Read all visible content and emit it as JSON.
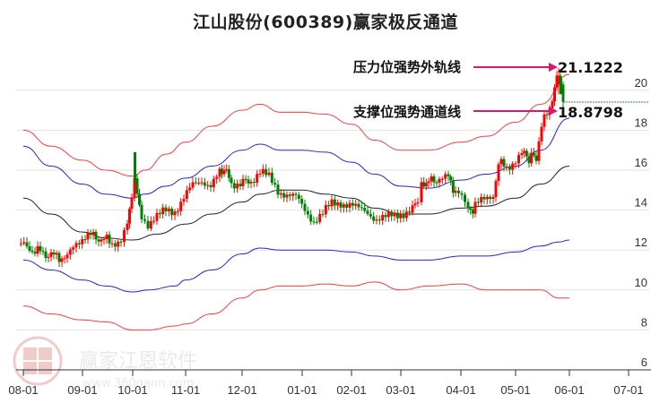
{
  "title": "江山股份(600389)赢家极反通道",
  "watermark": {
    "brand": "赢家江恩软件",
    "url": "www.360gann.com",
    "seal": [
      "江",
      "赢",
      "恩",
      "家"
    ]
  },
  "colors": {
    "up": "#ff0000",
    "down": "#008000",
    "outer_band": "#ff3b3b",
    "inner_band": "#2323e6",
    "mid_line": "#222222",
    "arrow": "#e0156e",
    "grid": "#e2e2e2",
    "dashed_level": "#2e8b2e"
  },
  "chart_data": {
    "type": "candlestick_with_channels",
    "title": "江山股份(600389)赢家极反通道",
    "xlabel": "",
    "ylabel": "",
    "ylim": [
      6,
      21.5
    ],
    "y_ticks": [
      6,
      8,
      10,
      12,
      14,
      16,
      18,
      20
    ],
    "x_ticks": [
      "08-01",
      "09-01",
      "10-01",
      "11-01",
      "12-01",
      "01-01",
      "02-01",
      "03-01",
      "04-01",
      "05-01",
      "06-01",
      "07-01"
    ],
    "grid": true,
    "y_axis_position": "right",
    "annotations": [
      {
        "label": "压力位强势外轨线",
        "value": "21.1222"
      },
      {
        "label": "支撑位强势通道线",
        "value": "18.8798"
      }
    ],
    "dashed_level": 19.35,
    "series": [
      {
        "name": "outer_upper",
        "color": "#ff3b3b",
        "x": [
          "08-01",
          "08-15",
          "09-01",
          "09-15",
          "10-01",
          "10-08",
          "10-20",
          "11-01",
          "11-15",
          "12-01",
          "12-10",
          "12-20",
          "01-01",
          "01-15",
          "02-01",
          "02-15",
          "03-01",
          "03-15",
          "04-01",
          "04-15",
          "05-01",
          "05-15",
          "06-01"
        ],
        "values": [
          18.0,
          17.2,
          16.5,
          16.0,
          15.7,
          16.0,
          16.8,
          17.4,
          18.2,
          19.0,
          19.3,
          18.9,
          18.9,
          18.8,
          18.3,
          17.5,
          17.0,
          17.0,
          17.4,
          17.7,
          18.4,
          19.3,
          20.8
        ]
      },
      {
        "name": "inner_upper",
        "color": "#2323e6",
        "x": [
          "08-01",
          "08-15",
          "09-01",
          "09-15",
          "10-01",
          "10-08",
          "10-20",
          "11-01",
          "11-15",
          "12-01",
          "12-10",
          "12-20",
          "01-01",
          "01-15",
          "02-01",
          "02-15",
          "03-01",
          "03-15",
          "04-01",
          "04-15",
          "05-01",
          "05-15",
          "06-01"
        ],
        "values": [
          17.2,
          16.2,
          15.3,
          14.8,
          14.6,
          14.8,
          15.2,
          15.6,
          16.2,
          17.0,
          17.3,
          17.0,
          17.0,
          16.9,
          16.4,
          15.8,
          15.2,
          15.1,
          15.5,
          15.8,
          16.2,
          17.0,
          18.6
        ]
      },
      {
        "name": "middle",
        "color": "#222222",
        "x": [
          "08-01",
          "08-15",
          "09-01",
          "09-15",
          "10-01",
          "10-15",
          "11-01",
          "11-15",
          "12-01",
          "12-10",
          "12-20",
          "01-01",
          "01-15",
          "02-01",
          "02-15",
          "03-01",
          "03-15",
          "04-01",
          "04-15",
          "05-01",
          "05-15",
          "06-01"
        ],
        "values": [
          14.6,
          13.8,
          12.9,
          12.6,
          12.5,
          12.8,
          13.3,
          13.8,
          14.4,
          14.8,
          15.0,
          15.0,
          14.8,
          14.6,
          14.1,
          13.8,
          13.8,
          14.1,
          14.2,
          14.6,
          15.3,
          16.2
        ]
      },
      {
        "name": "inner_lower",
        "color": "#2323e6",
        "x": [
          "08-01",
          "08-15",
          "09-01",
          "09-15",
          "10-01",
          "10-10",
          "10-25",
          "11-01",
          "11-15",
          "12-01",
          "12-10",
          "12-20",
          "01-01",
          "01-15",
          "02-01",
          "02-15",
          "03-01",
          "03-15",
          "04-01",
          "04-15",
          "05-01",
          "05-15",
          "05-25",
          "06-01"
        ],
        "values": [
          11.5,
          11.0,
          10.5,
          10.2,
          9.9,
          10.0,
          10.2,
          10.5,
          11.0,
          11.8,
          12.1,
          12.0,
          12.0,
          12.0,
          11.9,
          11.7,
          11.5,
          11.5,
          11.7,
          11.7,
          11.9,
          12.2,
          12.4,
          12.5
        ]
      },
      {
        "name": "outer_lower",
        "color": "#ff3b3b",
        "x": [
          "08-01",
          "08-15",
          "09-01",
          "09-15",
          "10-01",
          "10-10",
          "10-25",
          "11-01",
          "11-15",
          "12-01",
          "12-10",
          "12-20",
          "01-01",
          "01-15",
          "02-01",
          "02-15",
          "03-01",
          "03-15",
          "04-01",
          "04-15",
          "05-01",
          "05-15",
          "05-25",
          "06-01"
        ],
        "values": [
          9.2,
          8.8,
          8.5,
          8.4,
          8.0,
          8.0,
          8.2,
          8.3,
          8.8,
          9.6,
          10.0,
          10.2,
          10.2,
          10.3,
          10.2,
          10.4,
          10.0,
          10.2,
          10.3,
          10.0,
          10.0,
          10.0,
          9.6,
          9.6
        ]
      }
    ],
    "candles_summary": {
      "start_price": 12.3,
      "low": 11.5,
      "spike_oct": 16.9,
      "dec_high": 16.6,
      "jan_low": 13.2,
      "mar_jump": 15.7,
      "apr_low": 13.7,
      "may_level": 16.5,
      "june_high": 21.12,
      "last_close": 19.4
    }
  }
}
